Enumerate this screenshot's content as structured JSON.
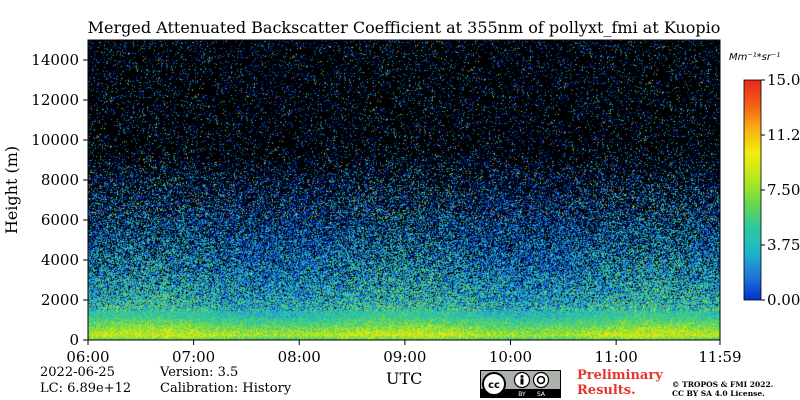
{
  "chart_data": {
    "type": "heatmap",
    "title": "Merged Attenuated Backscatter Coefficient at 355nm of pollyxt_fmi at Kuopio",
    "xlabel": "UTC",
    "ylabel": "Height (m)",
    "x_tick_labels": [
      "06:00",
      "07:00",
      "08:00",
      "09:00",
      "10:00",
      "11:00",
      "11:59"
    ],
    "x_range": [
      "06:00",
      "11:59"
    ],
    "y_tick_labels": [
      "0",
      "2000",
      "4000",
      "6000",
      "8000",
      "10000",
      "12000",
      "14000"
    ],
    "ylim": [
      0,
      15000
    ],
    "colorbar": {
      "unit": "Mm⁻¹*sr⁻¹",
      "tick_labels": [
        "0.00",
        "3.75",
        "7.50",
        "11.25",
        "15.00"
      ],
      "range": [
        0,
        15
      ],
      "colormap": "jet",
      "colors": [
        "#0033cc",
        "#1f78d6",
        "#1fb8c8",
        "#30c89a",
        "#6cd84a",
        "#b8e81e",
        "#f0ee10",
        "#f8b010",
        "#f06018",
        "#e82818"
      ]
    },
    "profile": {
      "description_levels_height_m": [
        0,
        250,
        600,
        1200,
        2000,
        3000,
        4500,
        6500,
        8500,
        15000
      ],
      "approx_backscatter": [
        5.5,
        8.5,
        7.0,
        4.5,
        3.5,
        2.8,
        2.0,
        1.2,
        0.6,
        0.4
      ]
    },
    "background_color": "#000000"
  },
  "footer": {
    "date": "2022-06-25",
    "lc": "LC: 6.89e+12",
    "version": "Version: 3.5",
    "calibration": "Calibration: History",
    "preliminary_line1": "Preliminary",
    "preliminary_line2": "Results.",
    "copyright_line1": "© TROPOS & FMI 2022.",
    "copyright_line2": "CC BY SA 4.0 License.",
    "license_badge": "cc-by-sa-icon"
  }
}
